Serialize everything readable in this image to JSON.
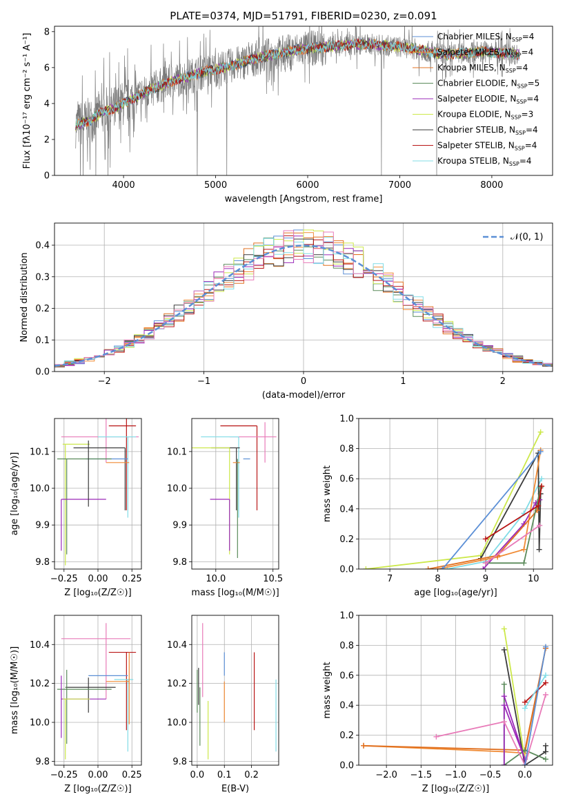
{
  "title": "PLATE=0374, MJD=51791, FIBERID=0230, z=0.091",
  "colors": {
    "c1": "#5b8fd6",
    "c2": "#f08a33",
    "c3": "#e07020",
    "c4": "#5a8a5a",
    "c5": "#9a28b8",
    "c6": "#cce84a",
    "c7": "#3a3a3a",
    "c8": "#b81414",
    "c9": "#80dce6",
    "c10": "#e87ab8",
    "data": "#7a7a7a"
  },
  "chart_data": [
    {
      "type": "line",
      "id": "spectrum",
      "xlabel": "wavelength [Angstrom, rest frame]",
      "ylabel": "Flux [fλ10⁻¹⁷ erg cm⁻² s⁻¹ A⁻¹]",
      "xlim": [
        3250,
        8660
      ],
      "ylim": [
        0,
        8.3
      ],
      "xticks": [
        4000,
        5000,
        6000,
        7000,
        8000
      ],
      "yticks": [
        0,
        2,
        4,
        6,
        8
      ],
      "grid": false,
      "legend": "upper right",
      "continuum": [
        [
          3480,
          2.8
        ],
        [
          3550,
          2.9
        ],
        [
          3650,
          3.1
        ],
        [
          3720,
          3.4
        ],
        [
          3800,
          3.6
        ],
        [
          3900,
          3.7
        ],
        [
          4000,
          4.0
        ],
        [
          4150,
          4.4
        ],
        [
          4300,
          4.8
        ],
        [
          4500,
          5.2
        ],
        [
          4700,
          5.5
        ],
        [
          4900,
          5.8
        ],
        [
          5100,
          6.0
        ],
        [
          5300,
          6.3
        ],
        [
          5500,
          6.6
        ],
        [
          5700,
          6.8
        ],
        [
          5900,
          7.0
        ],
        [
          6100,
          7.1
        ],
        [
          6300,
          7.2
        ],
        [
          6500,
          7.3
        ],
        [
          6700,
          7.3
        ],
        [
          6900,
          7.2
        ],
        [
          7100,
          7.1
        ],
        [
          7300,
          6.9
        ],
        [
          7500,
          6.7
        ],
        [
          7700,
          6.8
        ],
        [
          7900,
          6.9
        ],
        [
          8100,
          6.8
        ],
        [
          8200,
          6.8
        ],
        [
          8300,
          6.7
        ]
      ],
      "dips": [
        [
          3530,
          0.0
        ],
        [
          3560,
          0.0
        ],
        [
          3700,
          0.0
        ],
        [
          3830,
          0.0
        ],
        [
          4800,
          0.0
        ],
        [
          5120,
          0.0
        ],
        [
          6800,
          0.0
        ],
        [
          7400,
          0.0
        ]
      ],
      "series": [
        {
          "name": "Chabrier MILES, N",
          "sub": "SSP",
          "tail": "=4",
          "color": "c1"
        },
        {
          "name": "Salpeter MILES, N",
          "sub": "SSP",
          "tail": "=4",
          "color": "c2"
        },
        {
          "name": "Kroupa MILES, N",
          "sub": "SSP",
          "tail": "=4",
          "color": "c3"
        },
        {
          "name": "Chabrier ELODIE, N",
          "sub": "SSP",
          "tail": "=5",
          "color": "c4"
        },
        {
          "name": "Salpeter ELODIE, N",
          "sub": "SSP",
          "tail": "=4",
          "color": "c5"
        },
        {
          "name": "Kroupa ELODIE, N",
          "sub": "SSP",
          "tail": "=3",
          "color": "c6"
        },
        {
          "name": "Chabrier STELIB, N",
          "sub": "SSP",
          "tail": "=4",
          "color": "c7"
        },
        {
          "name": "Salpeter STELIB, N",
          "sub": "SSP",
          "tail": "=4",
          "color": "c8"
        },
        {
          "name": "Kroupa STELIB, N",
          "sub": "SSP",
          "tail": "=4",
          "color": "c9"
        }
      ]
    },
    {
      "type": "line",
      "id": "residuals",
      "xlabel": "(data-model)/error",
      "ylabel": "Normed distribution",
      "xlim": [
        -2.5,
        2.5
      ],
      "ylim": [
        0,
        0.47
      ],
      "xticks": [
        -2,
        -1,
        0,
        1,
        2
      ],
      "xticklabels": [
        "−2",
        "−1",
        "0",
        "1",
        "2"
      ],
      "yticks": [
        0.0,
        0.1,
        0.2,
        0.3,
        0.4
      ],
      "grid": true,
      "legend": "upper right",
      "gauss_label": "𝒩(0, 1)",
      "bins": 50
    },
    {
      "type": "scatter",
      "id": "age-Z",
      "xlabel": "Z [log₁₀(Z/Z☉)]",
      "ylabel": "age  [log₁₀(age/yr)]",
      "xlim": [
        -0.32,
        0.32
      ],
      "ylim": [
        9.78,
        10.19
      ],
      "xticks": [
        -0.25,
        0.0,
        0.25
      ],
      "xticklabels": [
        "−0.25",
        "0.00",
        "0.25"
      ],
      "yticks": [
        9.8,
        9.9,
        10.0,
        10.1
      ],
      "yticklabels": [
        "9.8",
        "9.9",
        "10.0",
        "10.1"
      ],
      "grid": true,
      "points": [
        {
          "color": "c8",
          "x": 0.21,
          "xerr": [
            0.13,
            0.07
          ],
          "y": 10.17,
          "yerr": [
            0.23,
            0.03
          ]
        },
        {
          "color": "c10",
          "x": 0.06,
          "xerr": [
            0.33,
            0.24
          ],
          "y": 10.14,
          "yerr": [
            0.07,
            0.07
          ]
        },
        {
          "color": "c9",
          "x": 0.22,
          "xerr": [
            0.22,
            0.06
          ],
          "y": 10.14,
          "yerr": [
            0.22,
            0.0
          ]
        },
        {
          "color": "c7",
          "x": 0.2,
          "xerr": [
            0.38,
            0.0
          ],
          "y": 10.11,
          "yerr": [
            0.17,
            0.0
          ]
        },
        {
          "color": "c6",
          "x": -0.24,
          "xerr": [
            0.02,
            0.18
          ],
          "y": 10.12,
          "yerr": [
            0.33,
            0.0
          ]
        },
        {
          "color": "c1",
          "x": 0.07,
          "xerr": [
            0.16,
            0.15
          ],
          "y": 10.08,
          "yerr": [
            0.0,
            0.0
          ]
        },
        {
          "color": "c2",
          "x": 0.23,
          "xerr": [
            0.17,
            0.0
          ],
          "y": 10.07,
          "yerr": [
            0.0,
            0.0
          ]
        },
        {
          "color": "c4",
          "x": -0.23,
          "xerr": [
            0.07,
            0.33
          ],
          "y": 10.08,
          "yerr": [
            0.26,
            0.0
          ]
        },
        {
          "color": "c5",
          "x": -0.27,
          "xerr": [
            0.0,
            0.33
          ],
          "y": 9.97,
          "yerr": [
            0.14,
            0.0
          ]
        },
        {
          "color": "c7",
          "x": -0.07,
          "xerr": [
            0.0,
            0.0
          ],
          "y": 10.07,
          "yerr": [
            0.12,
            0.06
          ]
        }
      ]
    },
    {
      "type": "scatter",
      "id": "age-mass",
      "xlabel": "mass [log₁₀(M/M☉)]",
      "ylabel": "",
      "xlim": [
        9.79,
        10.55
      ],
      "ylim": [
        9.78,
        10.19
      ],
      "xticks": [
        10.0,
        10.5
      ],
      "xticklabels": [
        "10.0",
        "10.5"
      ],
      "yticks": [
        9.8,
        9.9,
        10.0,
        10.1
      ],
      "yticklabels": [
        "9.8",
        "9.9",
        "10.0",
        "10.1"
      ],
      "grid": true,
      "points": [
        {
          "color": "c8",
          "x": 10.36,
          "xerr": [
            0.32,
            0.0
          ],
          "y": 10.17,
          "yerr": [
            0.23,
            0.0
          ]
        },
        {
          "color": "c10",
          "x": 10.43,
          "xerr": [
            0.31,
            0.1
          ],
          "y": 10.14,
          "yerr": [
            0.07,
            0.04
          ]
        },
        {
          "color": "c9",
          "x": 10.2,
          "xerr": [
            0.33,
            0.0
          ],
          "y": 10.14,
          "yerr": [
            0.22,
            0.0
          ]
        },
        {
          "color": "c7",
          "x": 10.18,
          "xerr": [
            0.22,
            0.03
          ],
          "y": 10.11,
          "yerr": [
            0.17,
            0.0
          ]
        },
        {
          "color": "c6",
          "x": 10.12,
          "xerr": [
            0.33,
            0.0
          ],
          "y": 10.11,
          "yerr": [
            0.29,
            0.0
          ]
        },
        {
          "color": "c1",
          "x": 10.24,
          "xerr": [
            0.0,
            0.06
          ],
          "y": 10.08,
          "yerr": [
            0.0,
            0.0
          ]
        },
        {
          "color": "c2",
          "x": 10.21,
          "xerr": [
            0.06,
            0.0
          ],
          "y": 10.07,
          "yerr": [
            0.0,
            0.0
          ]
        },
        {
          "color": "c4",
          "x": 10.19,
          "xerr": [
            0.0,
            0.0
          ],
          "y": 10.08,
          "yerr": [
            0.27,
            0.0
          ]
        },
        {
          "color": "c5",
          "x": 10.12,
          "xerr": [
            0.17,
            0.0
          ],
          "y": 9.97,
          "yerr": [
            0.14,
            0.0
          ]
        }
      ]
    },
    {
      "type": "line",
      "id": "weight-age",
      "xlabel": "age  [log₁₀(age/yr)]",
      "ylabel": "mass weight",
      "xlim": [
        6.35,
        10.4
      ],
      "ylim": [
        0.0,
        1.0
      ],
      "xticks": [
        7,
        8,
        9,
        10
      ],
      "yticks": [
        0.0,
        0.2,
        0.4,
        0.6,
        0.8,
        1.0
      ],
      "grid": true,
      "series": [
        {
          "color": "c6",
          "x": [
            6.5,
            8.9,
            10.15
          ],
          "y": [
            0.0,
            0.09,
            0.91
          ]
        },
        {
          "color": "c9",
          "x": [
            8.2,
            9.0,
            9.8,
            10.17
          ],
          "y": [
            0.0,
            0.05,
            0.37,
            0.6
          ]
        },
        {
          "color": "c7",
          "x": [
            8.9,
            10.1,
            10.12,
            10.15
          ],
          "y": [
            0.07,
            0.77,
            0.13,
            0.5
          ]
        },
        {
          "color": "c5",
          "x": [
            8.95,
            9.8,
            10.05,
            10.13
          ],
          "y": [
            0.0,
            0.3,
            0.44,
            0.46
          ]
        },
        {
          "color": "c2",
          "x": [
            8.0,
            9.25,
            9.8,
            10.15
          ],
          "y": [
            0.0,
            0.08,
            0.13,
            0.79
          ]
        },
        {
          "color": "c3",
          "x": [
            7.8,
            9.25,
            10.08,
            10.17
          ],
          "y": [
            0.0,
            0.09,
            0.39,
            0.55
          ]
        },
        {
          "color": "c4",
          "x": [
            9.0,
            9.8,
            10.15
          ],
          "y": [
            0.04,
            0.04,
            0.54
          ]
        },
        {
          "color": "c8",
          "x": [
            9.0,
            10.1,
            10.17
          ],
          "y": [
            0.2,
            0.42,
            0.55
          ]
        },
        {
          "color": "c10",
          "x": [
            9.0,
            10.13
          ],
          "y": [
            0.04,
            0.29
          ]
        },
        {
          "color": "c1",
          "x": [
            8.1,
            10.15
          ],
          "y": [
            0.0,
            0.78
          ]
        }
      ]
    },
    {
      "type": "scatter",
      "id": "mass-Z",
      "xlabel": "Z [log₁₀(Z/Z☉)]",
      "ylabel": "mass [log₁₀(M/M☉)]",
      "xlim": [
        -0.32,
        0.32
      ],
      "ylim": [
        9.78,
        10.55
      ],
      "xticks": [
        -0.25,
        0.0,
        0.25
      ],
      "xticklabels": [
        "−0.25",
        "0.00",
        "0.25"
      ],
      "yticks": [
        9.8,
        10.0,
        10.2,
        10.4
      ],
      "yticklabels": [
        "9.8",
        "10.0",
        "10.2",
        "10.4"
      ],
      "grid": true,
      "points": [
        {
          "color": "c10",
          "x": 0.06,
          "xerr": [
            0.33,
            0.18
          ],
          "y": 10.43,
          "yerr": [
            0.31,
            0.08
          ]
        },
        {
          "color": "c8",
          "x": 0.21,
          "xerr": [
            0.13,
            0.07
          ],
          "y": 10.36,
          "yerr": [
            0.4,
            0.0
          ]
        },
        {
          "color": "c1",
          "x": 0.07,
          "xerr": [
            0.14,
            0.15
          ],
          "y": 10.24,
          "yerr": [
            0.0,
            0.0
          ]
        },
        {
          "color": "c9",
          "x": 0.22,
          "xerr": [
            0.1,
            0.04
          ],
          "y": 10.22,
          "yerr": [
            0.37,
            0.0
          ]
        },
        {
          "color": "c2",
          "x": 0.23,
          "xerr": [
            0.17,
            0.0
          ],
          "y": 10.21,
          "yerr": [
            0.22,
            0.15
          ]
        },
        {
          "color": "c7",
          "x": -0.07,
          "xerr": [
            0.17,
            0.2
          ],
          "y": 10.18,
          "yerr": [
            0.13,
            0.05
          ]
        },
        {
          "color": "c4",
          "x": -0.23,
          "xerr": [
            0.07,
            0.33
          ],
          "y": 10.17,
          "yerr": [
            0.28,
            0.1
          ]
        },
        {
          "color": "c5",
          "x": -0.27,
          "xerr": [
            0.0,
            0.33
          ],
          "y": 10.12,
          "yerr": [
            0.2,
            0.12
          ]
        },
        {
          "color": "c6",
          "x": -0.24,
          "xerr": [
            0.02,
            0.18
          ],
          "y": 10.12,
          "yerr": [
            0.31,
            0.0
          ]
        }
      ]
    },
    {
      "type": "scatter",
      "id": "mass-ebv",
      "xlabel": "E(B-V)",
      "ylabel": "",
      "xlim": [
        -0.02,
        0.3
      ],
      "ylim": [
        9.78,
        10.55
      ],
      "xticks": [
        0.0,
        0.1,
        0.2
      ],
      "xticklabels": [
        "0.0",
        "0.1",
        "0.2"
      ],
      "yticks": [
        9.8,
        10.0,
        10.2,
        10.4
      ],
      "yticklabels": [
        "9.8",
        "10.0",
        "10.2",
        "10.4"
      ],
      "grid": true,
      "points": [
        {
          "color": "c10",
          "x": 0.02,
          "y": 10.43,
          "yerr": [
            0.3,
            0.08
          ]
        },
        {
          "color": "c4",
          "x": 0.0,
          "y": 10.17,
          "yerr": [
            0.12,
            0.1
          ]
        },
        {
          "color": "c7",
          "x": 0.005,
          "y": 10.16,
          "yerr": [
            0.07,
            0.12
          ]
        },
        {
          "color": "c6",
          "x": 0.04,
          "y": 10.11,
          "yerr": [
            0.3,
            0.0
          ]
        },
        {
          "color": "c1",
          "x": 0.1,
          "y": 10.24,
          "yerr": [
            0.0,
            0.12
          ]
        },
        {
          "color": "c2",
          "x": 0.1,
          "y": 10.21,
          "yerr": [
            0.21,
            0.0
          ]
        },
        {
          "color": "c8",
          "x": 0.21,
          "y": 10.36,
          "yerr": [
            0.4,
            0.0
          ]
        },
        {
          "color": "c9",
          "x": 0.29,
          "y": 10.22,
          "yerr": [
            0.37,
            0.0
          ]
        },
        {
          "color": "c4",
          "x": 0.01,
          "y": 10.18,
          "yerr": [
            0.3,
            0.0
          ]
        }
      ]
    },
    {
      "type": "line",
      "id": "weight-Z",
      "xlabel": "Z [log₁₀(Z/Z☉)]",
      "ylabel": "mass weight",
      "xlim": [
        -2.4,
        0.4
      ],
      "ylim": [
        0.0,
        1.0
      ],
      "xticks": [
        -2.0,
        -1.5,
        -1.0,
        -0.5,
        0.0
      ],
      "xticklabels": [
        "−2.0",
        "−1.5",
        "−1.0",
        "−0.5",
        "0.0"
      ],
      "yticks": [
        0.0,
        0.2,
        0.4,
        0.6,
        0.8,
        1.0
      ],
      "grid": true,
      "series": [
        {
          "color": "c2",
          "x": [
            -2.33,
            -0.3,
            0.0,
            0.3
          ],
          "y": [
            0.13,
            0.09,
            0.08,
            0.78
          ]
        },
        {
          "color": "c3",
          "x": [
            -2.33,
            0.0,
            0.3
          ],
          "y": [
            0.13,
            0.1,
            0.78
          ]
        },
        {
          "color": "c6",
          "x": [
            -0.3,
            0.0
          ],
          "y": [
            0.91,
            0.04
          ]
        },
        {
          "color": "c7",
          "x": [
            -0.3,
            0.0,
            0.3,
            0.3
          ],
          "y": [
            0.77,
            0.0,
            0.09,
            0.13
          ]
        },
        {
          "color": "c4",
          "x": [
            -0.3,
            -0.3,
            0.0,
            0.3
          ],
          "y": [
            0.54,
            0.0,
            0.1,
            0.04
          ]
        },
        {
          "color": "c5",
          "x": [
            -0.3,
            0.0,
            -0.3,
            -0.3
          ],
          "y": [
            0.46,
            0.04,
            0.4,
            0.0
          ]
        },
        {
          "color": "c8",
          "x": [
            0.0,
            0.3
          ],
          "y": [
            0.42,
            0.55
          ]
        },
        {
          "color": "c9",
          "x": [
            0.0,
            0.3
          ],
          "y": [
            0.38,
            0.6
          ]
        },
        {
          "color": "c10",
          "x": [
            -1.28,
            -0.3,
            0.0,
            0.3
          ],
          "y": [
            0.19,
            0.29,
            0.0,
            0.47
          ]
        },
        {
          "color": "c1",
          "x": [
            0.0,
            0.3
          ],
          "y": [
            0.0,
            0.79
          ]
        }
      ]
    }
  ]
}
